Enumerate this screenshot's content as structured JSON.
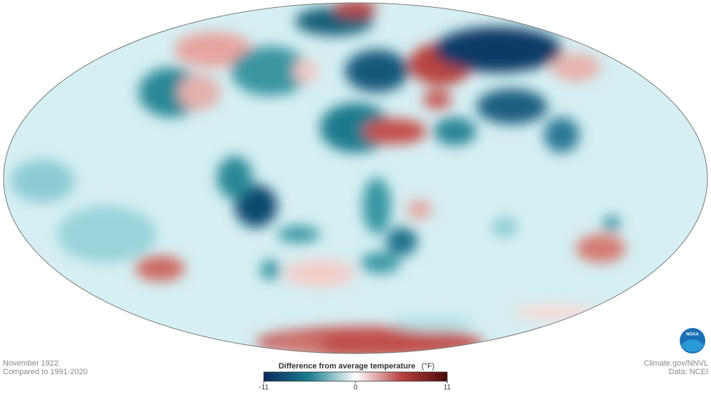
{
  "footer": {
    "date": "November 1922",
    "baseline": "Compared to 1991-2020",
    "credit": "Climate.gov/NNVL",
    "source": "Data: NCEI"
  },
  "legend": {
    "title": "Difference from average temperature",
    "unit": "(°F)",
    "range": [
      -11,
      11
    ],
    "ticks": [
      -11,
      0,
      11
    ],
    "colors": [
      "#0b2a5e",
      "#1b7f8f",
      "#ffffff",
      "#b8423f",
      "#4a0808"
    ]
  },
  "logo": "NOAA"
}
